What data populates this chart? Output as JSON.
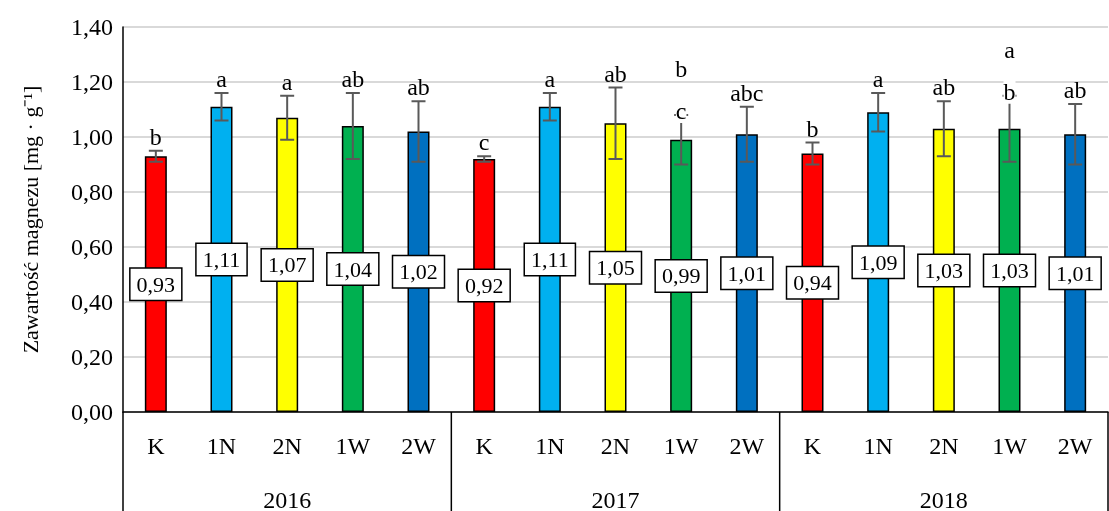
{
  "chart_data": {
    "type": "bar",
    "ylabel": "Zawartość magnezu [mg · g⁻¹]",
    "categories": [
      "K",
      "1N",
      "2N",
      "1W",
      "2W",
      "K",
      "1N",
      "2N",
      "1W",
      "2W",
      "K",
      "1N",
      "2N",
      "1W",
      "2W"
    ],
    "values": [
      0.93,
      1.11,
      1.07,
      1.04,
      1.02,
      0.92,
      1.11,
      1.05,
      0.99,
      1.01,
      0.94,
      1.09,
      1.03,
      1.03,
      1.01
    ],
    "colors": [
      "#ff0000",
      "#00b0f0",
      "#ffff00",
      "#00b050",
      "#0070c0",
      "#ff0000",
      "#00b0f0",
      "#ffff00",
      "#00b050",
      "#0070c0",
      "#ff0000",
      "#00b0f0",
      "#ffff00",
      "#00b050",
      "#0070c0"
    ],
    "errors": [
      0.02,
      0.05,
      0.08,
      0.12,
      0.11,
      0.01,
      0.05,
      0.13,
      0.09,
      0.1,
      0.04,
      0.07,
      0.1,
      0.12,
      0.11
    ],
    "value_labels": [
      "0,93",
      "1,11",
      "1,07",
      "1,04",
      "1,02",
      "0,92",
      "1,11",
      "1,05",
      "0,99",
      "1,01",
      "0,94",
      "1,09",
      "1,03",
      "1,03",
      "1,01"
    ],
    "ylim": [
      0,
      1.4
    ],
    "yticks": [
      {
        "value": 0,
        "label": "0,00"
      },
      {
        "value": 0.2,
        "label": "0,20"
      },
      {
        "value": 0.4,
        "label": "0,40"
      },
      {
        "value": 0.6,
        "label": "0,60"
      },
      {
        "value": 0.8,
        "label": "0,80"
      },
      {
        "value": 1.0,
        "label": "1,00"
      },
      {
        "value": 1.2,
        "label": "1,20"
      },
      {
        "value": 1.4,
        "label": "1,40"
      }
    ],
    "grid": "y",
    "annotations": [
      "b",
      "a",
      "a",
      "ab",
      "ab",
      "c",
      "a",
      "ab",
      "b\nc",
      "abc",
      "b",
      "a",
      "ab",
      "a\nb",
      "ab",
      "2016",
      "2017",
      "2018"
    ]
  }
}
